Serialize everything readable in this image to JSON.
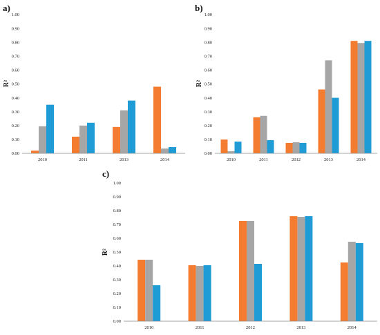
{
  "colors": {
    "orange": "#f47c30",
    "gray": "#a6a6a6",
    "blue": "#1f9bd6"
  },
  "chart_data": [
    {
      "type": "bar",
      "panel_label": "a)",
      "ylabel": "R²",
      "ylim": [
        0,
        1
      ],
      "yticks": [
        "0.00",
        "0.10",
        "0.20",
        "0.30",
        "0.40",
        "0.50",
        "0.60",
        "0.70",
        "0.80",
        "0.90",
        "1.00"
      ],
      "categories": [
        "2010",
        "2011",
        "2013",
        "2014"
      ],
      "series": [
        {
          "values": [
            0.02,
            0.12,
            0.19,
            0.48
          ]
        },
        {
          "values": [
            0.195,
            0.2,
            0.31,
            0.035
          ]
        },
        {
          "values": [
            0.35,
            0.22,
            0.38,
            0.045
          ]
        }
      ]
    },
    {
      "type": "bar",
      "panel_label": "b)",
      "ylabel": "R²",
      "ylim": [
        0,
        1
      ],
      "yticks": [
        "0.00",
        "0.10",
        "0.20",
        "0.30",
        "0.40",
        "0.50",
        "0.60",
        "0.70",
        "0.80",
        "0.90",
        "1.00"
      ],
      "categories": [
        "2010",
        "2011",
        "2012",
        "2013",
        "2014"
      ],
      "series": [
        {
          "values": [
            0.1,
            0.26,
            0.075,
            0.46,
            0.81
          ]
        },
        {
          "values": [
            0.015,
            0.27,
            0.08,
            0.67,
            0.795
          ]
        },
        {
          "values": [
            0.085,
            0.095,
            0.075,
            0.4,
            0.81
          ]
        }
      ]
    },
    {
      "type": "bar",
      "panel_label": "c)",
      "ylabel": "R²",
      "ylim": [
        0,
        1
      ],
      "yticks": [
        "0.00",
        "0.10",
        "0.20",
        "0.30",
        "0.40",
        "0.50",
        "0.60",
        "0.70",
        "0.80",
        "0.90",
        "1.00"
      ],
      "categories": [
        "2010",
        "2011",
        "2012",
        "2013",
        "2014"
      ],
      "series": [
        {
          "values": [
            0.445,
            0.405,
            0.725,
            0.76,
            0.425
          ]
        },
        {
          "values": [
            0.445,
            0.4,
            0.725,
            0.755,
            0.575
          ]
        },
        {
          "values": [
            0.26,
            0.405,
            0.415,
            0.76,
            0.565
          ]
        }
      ]
    }
  ]
}
